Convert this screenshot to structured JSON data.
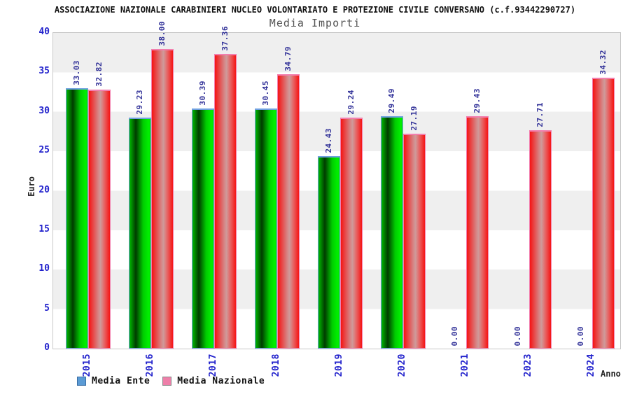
{
  "header": {
    "title": "ASSOCIAZIONE NAZIONALE CARABINIERI NUCLEO VOLONTARIATO E PROTEZIONE CIVILE CONVERSANO (c.f.93442290727)",
    "subtitle": "Media Importi"
  },
  "chart_data": {
    "type": "bar",
    "title": "Media Importi",
    "xlabel": "Anno",
    "ylabel": "Euro",
    "ylim": [
      0,
      40
    ],
    "y_ticks": [
      0,
      5,
      10,
      15,
      20,
      25,
      30,
      35,
      40
    ],
    "grid": "alternating horizontal gray/white bands every 5 units",
    "legend_position": "bottom-left",
    "value_label_format": "2 decimals, rotated 90deg above bar",
    "categories": [
      "2015",
      "2016",
      "2017",
      "2018",
      "2019",
      "2020",
      "2021",
      "2023",
      "2024"
    ],
    "series": [
      {
        "name": "Media Ente",
        "legend_color": "#5b9bd5",
        "bar_style": "green-cylinder-gradient",
        "cap_color": "#6fa0e0",
        "values": [
          33.03,
          29.23,
          30.39,
          30.45,
          24.43,
          29.49,
          0,
          0,
          0
        ]
      },
      {
        "name": "Media Nazionale",
        "legend_color": "#ee7fa9",
        "bar_style": "red-cylinder-gradient",
        "cap_color": "#f27fae",
        "values": [
          32.82,
          38,
          37.36,
          34.79,
          29.24,
          27.19,
          29.43,
          27.71,
          34.32
        ]
      }
    ]
  },
  "colors": {
    "tick_label": "#2222cc",
    "value_label": "#333399",
    "band_gray": "#efefef",
    "band_white": "#ffffff",
    "plot_border": "#c8c8c8",
    "title_color": "#111111",
    "subtitle_color": "#555555",
    "green_bar_bright": "#00ef00",
    "green_bar_dark": "#003c00",
    "red_bar_bright": "#f51414",
    "red_bar_light": "#cf9b9b"
  }
}
